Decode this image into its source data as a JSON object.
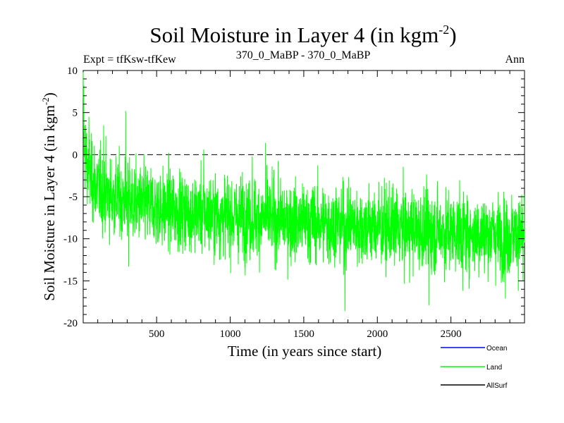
{
  "chart_data": {
    "type": "line",
    "title": "Soil Moisture in Layer 4 (in kgm",
    "title_sup": "-2",
    "title_close": ")",
    "subtitle_left": "Expt = tfKsw-tfKew",
    "subtitle_center": "370_0_MaBP - 370_0_MaBP",
    "subtitle_right": "Ann",
    "xlabel": "Time (in years since start)",
    "ylabel": "Soil Moisture in Layer 4 (in kgm",
    "ylabel_sup": "-2",
    "ylabel_close": ")",
    "xlim": [
      1,
      3000
    ],
    "ylim": [
      -20,
      10
    ],
    "xticks": [
      500,
      1000,
      1500,
      2000,
      2500
    ],
    "xtick_labels": [
      "500",
      "1000",
      "1500",
      "2000",
      "2500"
    ],
    "yticks": [
      -20,
      -15,
      -10,
      -5,
      0,
      5,
      10
    ],
    "ytick_labels": [
      "-20",
      "-15",
      "-10",
      "-5",
      "0",
      "5",
      "10"
    ],
    "reference_line": 0,
    "series": [
      {
        "name": "Ocean",
        "color": "#0000ff",
        "values": []
      },
      {
        "name": "Land",
        "color": "#00ff00",
        "trend": {
          "x": [
            1,
            10,
            30,
            60,
            100,
            150,
            200,
            300,
            400,
            500,
            700,
            1000,
            1200,
            1500,
            2000,
            2500,
            3000
          ],
          "y": [
            4,
            1,
            -1.5,
            -3,
            -4,
            -4.5,
            -5,
            -5.5,
            -6,
            -6.3,
            -6.8,
            -7.3,
            -7.6,
            -8,
            -8.6,
            -9.2,
            -9.6
          ]
        },
        "noise_sd": 2.3,
        "extremes": [
          {
            "x": 1,
            "y": 9.8
          },
          {
            "x": 5,
            "y": 8.2
          },
          {
            "x": 40,
            "y": 4.5
          },
          {
            "x": 140,
            "y": 3.5
          },
          {
            "x": 290,
            "y": 5.2
          },
          {
            "x": 310,
            "y": -13.3
          },
          {
            "x": 820,
            "y": 0.6
          },
          {
            "x": 1150,
            "y": -0.2
          },
          {
            "x": 1240,
            "y": 1.4
          },
          {
            "x": 1780,
            "y": -18.6
          },
          {
            "x": 2350,
            "y": -17.9
          },
          {
            "x": 2580,
            "y": -16.2
          },
          {
            "x": 2870,
            "y": -17.1
          },
          {
            "x": 2990,
            "y": -15.0
          }
        ]
      },
      {
        "name": "AllSurf",
        "color": "#000000",
        "values": []
      }
    ],
    "legend": [
      {
        "label": "Ocean",
        "color": "#0000ff"
      },
      {
        "label": "Land",
        "color": "#00ff00"
      },
      {
        "label": "AllSurf",
        "color": "#000000"
      }
    ]
  }
}
